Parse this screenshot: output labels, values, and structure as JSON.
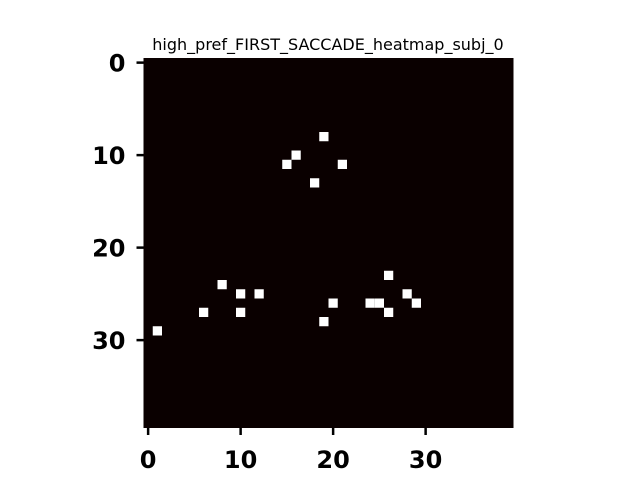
{
  "chart_data": {
    "type": "heatmap",
    "title": "high_pref_FIRST_SACCADE_heatmap_subj_0",
    "xlabel": "",
    "ylabel": "",
    "grid_size": [
      40,
      40
    ],
    "xlim": [
      -0.5,
      39.5
    ],
    "ylim": [
      39.5,
      -0.5
    ],
    "x_ticks": [
      0,
      10,
      20,
      30
    ],
    "y_ticks": [
      0,
      10,
      20,
      30
    ],
    "x_tick_labels": [
      "0",
      "10",
      "20",
      "30"
    ],
    "y_tick_labels": [
      "0",
      "10",
      "20",
      "30"
    ],
    "grid": false,
    "background_color": "#0a0000",
    "cell_color": "#ffffff",
    "cells": [
      {
        "x": 19,
        "y": 8,
        "value": 1
      },
      {
        "x": 16,
        "y": 10,
        "value": 1
      },
      {
        "x": 15,
        "y": 11,
        "value": 1
      },
      {
        "x": 21,
        "y": 11,
        "value": 1
      },
      {
        "x": 18,
        "y": 13,
        "value": 1
      },
      {
        "x": 26,
        "y": 23,
        "value": 1
      },
      {
        "x": 8,
        "y": 24,
        "value": 1
      },
      {
        "x": 10,
        "y": 25,
        "value": 1
      },
      {
        "x": 12,
        "y": 25,
        "value": 1
      },
      {
        "x": 28,
        "y": 25,
        "value": 1
      },
      {
        "x": 20,
        "y": 26,
        "value": 1
      },
      {
        "x": 24,
        "y": 26,
        "value": 1
      },
      {
        "x": 25,
        "y": 26,
        "value": 1
      },
      {
        "x": 29,
        "y": 26,
        "value": 1
      },
      {
        "x": 6,
        "y": 27,
        "value": 1
      },
      {
        "x": 10,
        "y": 27,
        "value": 1
      },
      {
        "x": 26,
        "y": 27,
        "value": 1
      },
      {
        "x": 19,
        "y": 28,
        "value": 1
      },
      {
        "x": 1,
        "y": 29,
        "value": 1
      }
    ]
  }
}
